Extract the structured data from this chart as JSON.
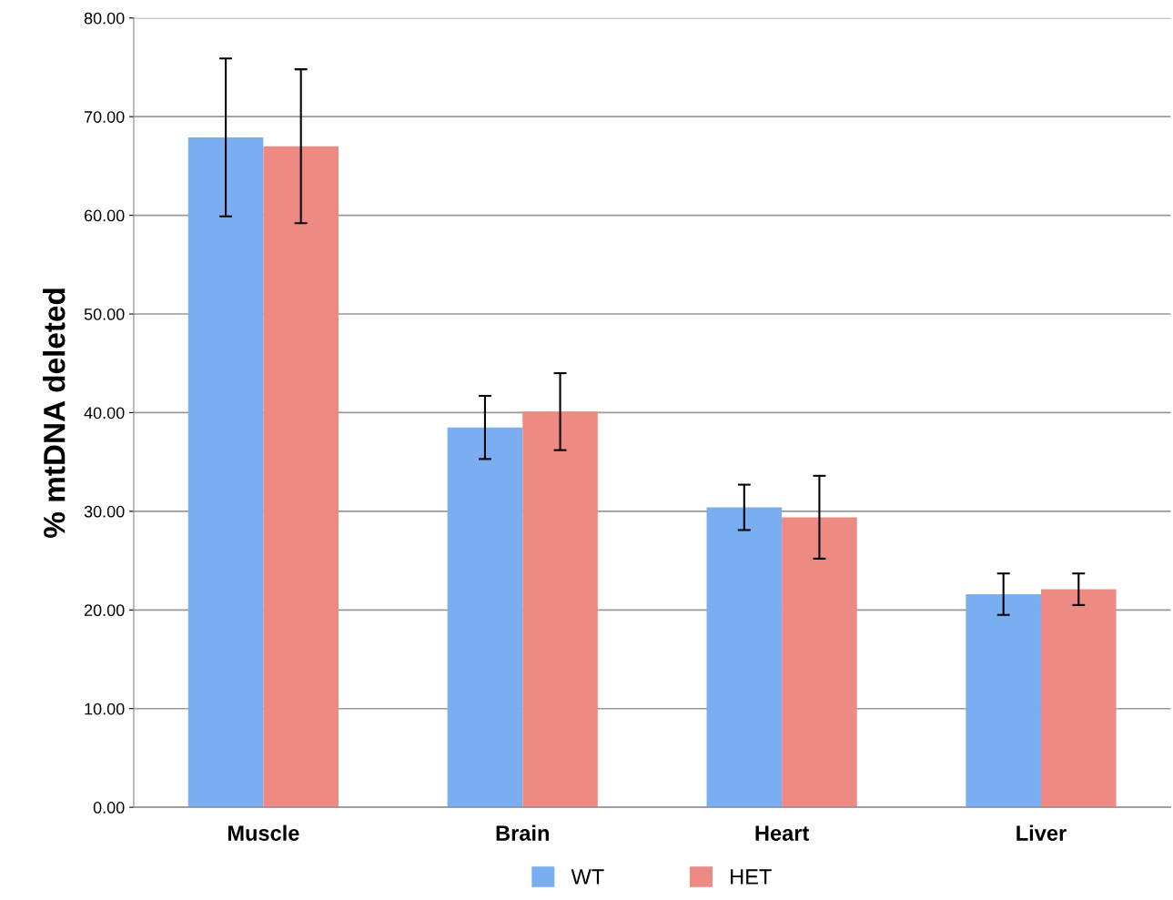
{
  "chart_data": {
    "type": "bar",
    "ylabel": "% mtDNA deleted",
    "categories": [
      "Muscle",
      "Brain",
      "Heart",
      "Liver"
    ],
    "series": [
      {
        "name": "WT",
        "color": "#7aaef0",
        "values": [
          67.9,
          38.5,
          30.4,
          21.6
        ],
        "errors": [
          8.0,
          3.2,
          2.3,
          2.1
        ]
      },
      {
        "name": "HET",
        "color": "#ee8a84",
        "values": [
          67.0,
          40.1,
          29.4,
          22.1
        ],
        "errors": [
          7.8,
          3.9,
          4.2,
          1.6
        ]
      }
    ],
    "ylim": [
      0,
      80
    ],
    "yticks": [
      {
        "value": 0,
        "label": "0.00"
      },
      {
        "value": 10,
        "label": "10.00"
      },
      {
        "value": 20,
        "label": "20.00"
      },
      {
        "value": 30,
        "label": "30.00"
      },
      {
        "value": 40,
        "label": "40.00"
      },
      {
        "value": 50,
        "label": "50.00"
      },
      {
        "value": 60,
        "label": "60.00"
      },
      {
        "value": 70,
        "label": "70.00"
      },
      {
        "value": 80,
        "label": "80.00"
      }
    ],
    "grid": "y",
    "legend": "bottom"
  }
}
